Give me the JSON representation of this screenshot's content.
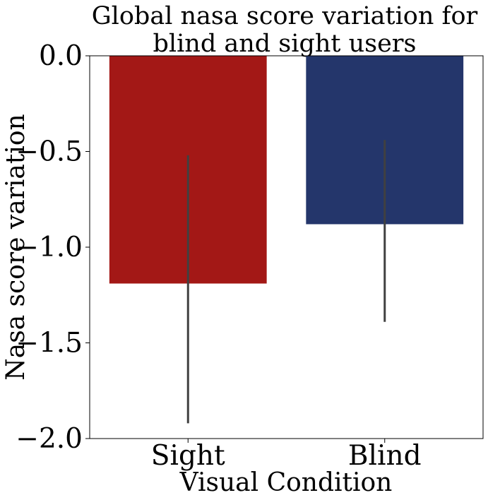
{
  "chart_data": {
    "type": "bar",
    "title_lines": [
      "Global nasa score variation for",
      "blind and sight users"
    ],
    "xlabel": "Visual Condition",
    "ylabel": "Nasa score variation",
    "categories": [
      "Sight",
      "Blind"
    ],
    "values": [
      -1.19,
      -0.88
    ],
    "error_low": [
      -1.92,
      -1.39
    ],
    "error_high": [
      -0.52,
      -0.44
    ],
    "colors": [
      "#a31816",
      "#24366b"
    ],
    "error_color": "#404040",
    "ylim": [
      -2.0,
      0.0
    ],
    "yticks": [
      0.0,
      -0.5,
      -1.0,
      -1.5,
      -2.0
    ],
    "ytick_labels": [
      "0.0",
      "−0.5",
      "−1.0",
      "−1.5",
      "−2.0"
    ],
    "grid": false,
    "legend": "none"
  }
}
